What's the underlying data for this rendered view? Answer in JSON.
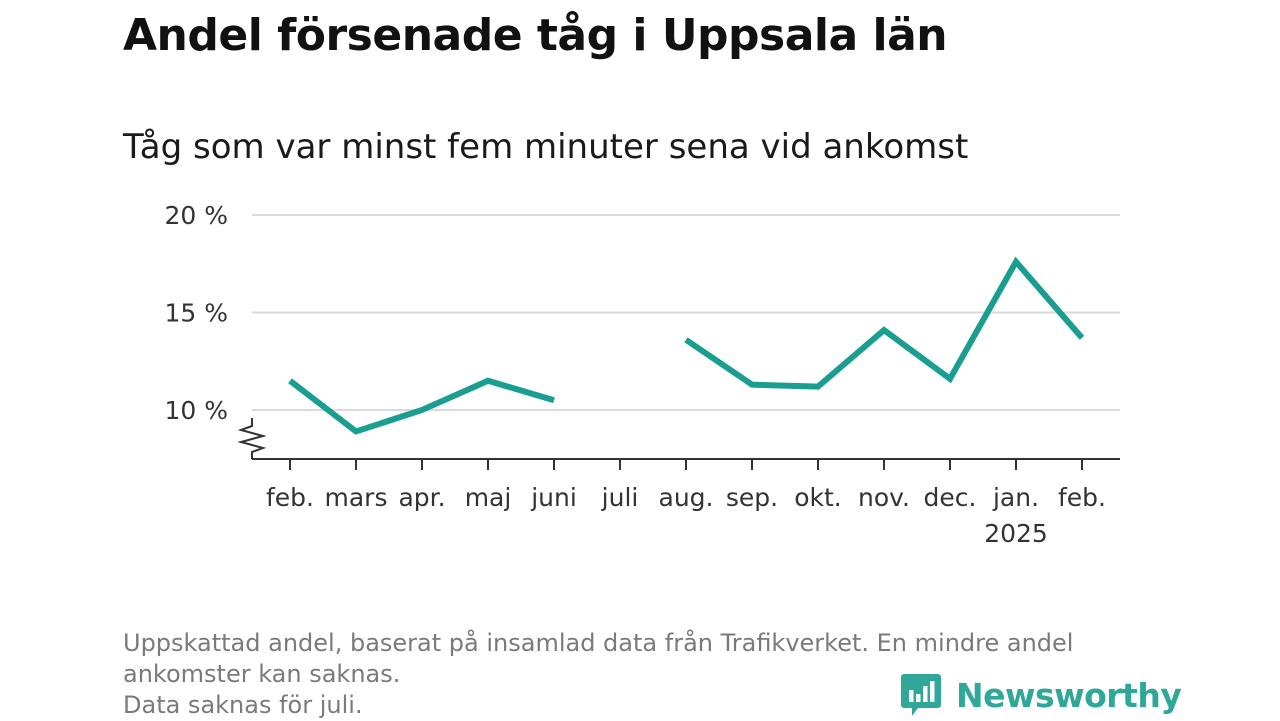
{
  "title": "Andel försenade tåg i Uppsala län",
  "subtitle": "Tåg som var minst fem minuter sena vid ankomst",
  "footnote": {
    "lines": [
      "Uppskattad andel, baserat på insamlad data från Trafikverket. En mindre andel",
      "ankomster kan saknas.",
      "Data saknas för juli."
    ]
  },
  "brand": {
    "name": "Newsworthy",
    "logo_icon": "newsworthy-chart-bubble-icon",
    "color": "#2fa899"
  },
  "colors": {
    "line": "#1a9e91",
    "grid": "#d9d9d9",
    "axis": "#333333"
  },
  "chart_data": {
    "type": "line",
    "categories": [
      "feb.",
      "mars",
      "apr.",
      "maj",
      "juni",
      "juli",
      "aug.",
      "sep.",
      "okt.",
      "nov.",
      "dec.",
      "jan.",
      "feb."
    ],
    "year_labels": [
      {
        "category_index": 11,
        "label": "2025"
      }
    ],
    "series": [
      {
        "values": [
          11.5,
          8.9,
          10.0,
          11.5,
          10.5,
          null,
          13.6,
          11.3,
          11.2,
          14.1,
          11.6,
          17.6,
          13.7
        ]
      }
    ],
    "yticks": [
      10,
      15,
      20
    ],
    "ytick_labels": [
      "10 %",
      "15 %",
      "20 %"
    ],
    "ylim": [
      7.5,
      20
    ],
    "y_axis_break": true,
    "grid": true,
    "legend": "none",
    "xlabel": "",
    "ylabel": ""
  }
}
